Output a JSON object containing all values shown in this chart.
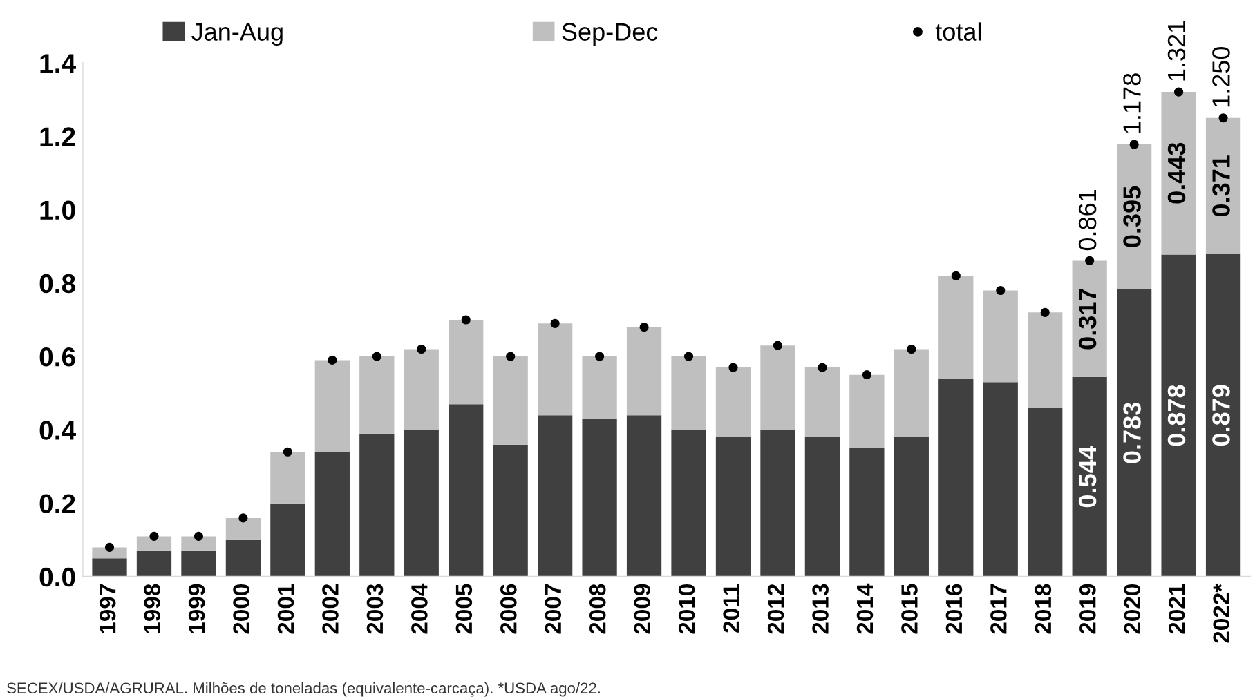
{
  "chart_data": {
    "type": "bar",
    "stacked": true,
    "categories": [
      "1997",
      "1998",
      "1999",
      "2000",
      "2001",
      "2002",
      "2003",
      "2004",
      "2005",
      "2006",
      "2007",
      "2008",
      "2009",
      "2010",
      "2011",
      "2012",
      "2013",
      "2014",
      "2015",
      "2016",
      "2017",
      "2018",
      "2019",
      "2020",
      "2021",
      "2022*"
    ],
    "series": [
      {
        "name": "Jan-Aug",
        "color": "#404040",
        "values": [
          0.05,
          0.07,
          0.07,
          0.1,
          0.2,
          0.34,
          0.39,
          0.4,
          0.47,
          0.36,
          0.44,
          0.43,
          0.44,
          0.4,
          0.38,
          0.4,
          0.38,
          0.35,
          0.38,
          0.54,
          0.53,
          0.46,
          0.544,
          0.783,
          0.878,
          0.879
        ],
        "value_labels": [
          null,
          null,
          null,
          null,
          null,
          null,
          null,
          null,
          null,
          null,
          null,
          null,
          null,
          null,
          null,
          null,
          null,
          null,
          null,
          null,
          null,
          null,
          "0.544",
          "0.783",
          "0.878",
          "0.879"
        ]
      },
      {
        "name": "Sep-Dec",
        "color": "#bfbfbf",
        "values": [
          0.03,
          0.04,
          0.04,
          0.06,
          0.14,
          0.25,
          0.21,
          0.22,
          0.23,
          0.24,
          0.25,
          0.17,
          0.24,
          0.2,
          0.19,
          0.23,
          0.19,
          0.2,
          0.24,
          0.28,
          0.25,
          0.26,
          0.317,
          0.395,
          0.443,
          0.371
        ],
        "value_labels": [
          null,
          null,
          null,
          null,
          null,
          null,
          null,
          null,
          null,
          null,
          null,
          null,
          null,
          null,
          null,
          null,
          null,
          null,
          null,
          null,
          null,
          null,
          "0.317",
          "0.395",
          "0.443",
          "0.371"
        ]
      },
      {
        "name": "total",
        "type": "scatter",
        "color": "#000000",
        "marker": "circle",
        "values": [
          0.08,
          0.11,
          0.11,
          0.16,
          0.34,
          0.59,
          0.6,
          0.62,
          0.7,
          0.6,
          0.69,
          0.6,
          0.68,
          0.6,
          0.57,
          0.63,
          0.57,
          0.55,
          0.62,
          0.82,
          0.78,
          0.72,
          0.861,
          1.178,
          1.321,
          1.25
        ],
        "value_labels": [
          null,
          null,
          null,
          null,
          null,
          null,
          null,
          null,
          null,
          null,
          null,
          null,
          null,
          null,
          null,
          null,
          null,
          null,
          null,
          null,
          null,
          null,
          "0.861",
          "1.178",
          "1.321",
          "1.250"
        ]
      }
    ],
    "ylim": [
      0,
      1.4
    ],
    "yticks": [
      "0.0",
      "0.2",
      "0.4",
      "0.6",
      "0.8",
      "1.0",
      "1.2",
      "1.4"
    ],
    "grid": false,
    "legend": "top",
    "annotations": [
      "SECEX/USDA/AGRURAL. Milhões de toneladas (equivalente-carcaça). *USDA ago/22."
    ]
  }
}
